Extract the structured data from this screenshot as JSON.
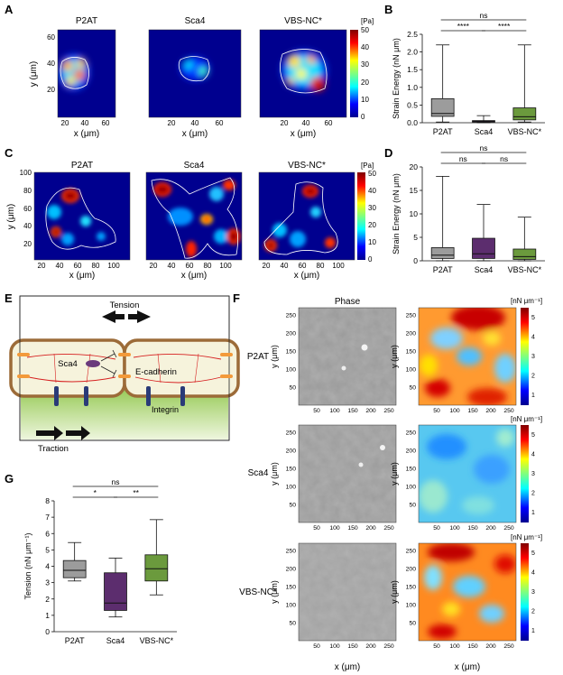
{
  "panels": {
    "A": "A",
    "B": "B",
    "C": "C",
    "D": "D",
    "E": "E",
    "F": "F",
    "G": "G"
  },
  "panel_a": {
    "titles": [
      "P2AT",
      "Sca4",
      "VBS-NC*"
    ],
    "xlabel": "x (μm)",
    "ylabel": "y (μm)",
    "xticks": [
      "20",
      "40",
      "60"
    ],
    "yticks": [
      "60",
      "40",
      "20"
    ],
    "colorbar_unit": "[Pa]",
    "colorbar_ticks": [
      "50",
      "40",
      "30",
      "20",
      "10",
      "0"
    ]
  },
  "panel_c": {
    "titles": [
      "P2AT",
      "Sca4",
      "VBS-NC*"
    ],
    "xlabel": "x (μm)",
    "ylabel": "y (μm)",
    "xticks": [
      "20",
      "40",
      "60",
      "80",
      "100"
    ],
    "yticks": [
      "100",
      "80",
      "60",
      "40",
      "20"
    ],
    "colorbar_unit": "[Pa]",
    "colorbar_ticks": [
      "50",
      "40",
      "30",
      "20",
      "10",
      "0"
    ]
  },
  "panel_e": {
    "tension": "Tension",
    "sca4": "Sca4",
    "ecad": "E-cadherin",
    "integrin": "Integrin",
    "traction": "Traction"
  },
  "panel_f": {
    "phase_title": "Phase",
    "rows": [
      "P2AT",
      "Sca4",
      "VBS-NC*"
    ],
    "unit": "[nN μm⁻¹]",
    "colorbar_ticks": [
      "5",
      "4",
      "3",
      "2",
      "1"
    ],
    "ticks": [
      "50",
      "100",
      "150",
      "200",
      "250"
    ],
    "xlabel": "x (μm)",
    "ylabel": "y (μm)"
  },
  "chart_data": [
    {
      "type": "box",
      "panel": "B",
      "categories": [
        "P2AT",
        "Sca4",
        "VBS-NC*"
      ],
      "ylabel": "Strain Energy (nN μm)",
      "ylim": [
        0,
        2.5
      ],
      "yticks": [
        "0.0",
        "0.5",
        "1.0",
        "1.5",
        "2.0",
        "2.5"
      ],
      "boxes": [
        {
          "min": 0.02,
          "q1": 0.18,
          "median": 0.26,
          "q3": 0.68,
          "max": 2.2
        },
        {
          "min": 0.0,
          "q1": 0.02,
          "median": 0.04,
          "q3": 0.06,
          "max": 0.2
        },
        {
          "min": 0.02,
          "q1": 0.08,
          "median": 0.17,
          "q3": 0.42,
          "max": 2.2
        }
      ],
      "colors": [
        "#9c9c9c",
        "#5c2d6e",
        "#6b9a3d"
      ],
      "significance": [
        {
          "from": 0,
          "to": 2,
          "label": "ns"
        },
        {
          "from": 0,
          "to": 1,
          "label": "****"
        },
        {
          "from": 1,
          "to": 2,
          "label": "****"
        }
      ]
    },
    {
      "type": "box",
      "panel": "D",
      "categories": [
        "P2AT",
        "Sca4",
        "VBS-NC*"
      ],
      "ylabel": "Strain Energy (nN μm)",
      "ylim": [
        0,
        20
      ],
      "yticks": [
        "0",
        "5",
        "10",
        "15",
        "20"
      ],
      "boxes": [
        {
          "min": 0,
          "q1": 0.5,
          "median": 1.2,
          "q3": 2.8,
          "max": 18
        },
        {
          "min": 0,
          "q1": 0.5,
          "median": 1.5,
          "q3": 4.8,
          "max": 12
        },
        {
          "min": 0,
          "q1": 0.3,
          "median": 0.9,
          "q3": 2.5,
          "max": 9.3
        }
      ],
      "colors": [
        "#9c9c9c",
        "#5c2d6e",
        "#6b9a3d"
      ],
      "significance": [
        {
          "from": 0,
          "to": 2,
          "label": "ns"
        },
        {
          "from": 0,
          "to": 1,
          "label": "ns"
        },
        {
          "from": 1,
          "to": 2,
          "label": "ns"
        }
      ]
    },
    {
      "type": "box",
      "panel": "G",
      "categories": [
        "P2AT",
        "Sca4",
        "VBS-NC*"
      ],
      "ylabel": "Tension (nN μm⁻¹)",
      "ylim": [
        0,
        8
      ],
      "yticks": [
        "0",
        "1",
        "2",
        "3",
        "4",
        "5",
        "6",
        "7",
        "8"
      ],
      "boxes": [
        {
          "min": 3.1,
          "q1": 3.3,
          "median": 3.75,
          "q3": 4.35,
          "max": 5.45
        },
        {
          "min": 0.9,
          "q1": 1.3,
          "median": 1.75,
          "q3": 3.6,
          "max": 4.5
        },
        {
          "min": 2.25,
          "q1": 3.1,
          "median": 3.85,
          "q3": 4.7,
          "max": 6.85
        }
      ],
      "colors": [
        "#9c9c9c",
        "#5c2d6e",
        "#6b9a3d"
      ],
      "significance": [
        {
          "from": 0,
          "to": 2,
          "label": "ns"
        },
        {
          "from": 0,
          "to": 1,
          "label": "*"
        },
        {
          "from": 1,
          "to": 2,
          "label": "**"
        }
      ]
    }
  ]
}
